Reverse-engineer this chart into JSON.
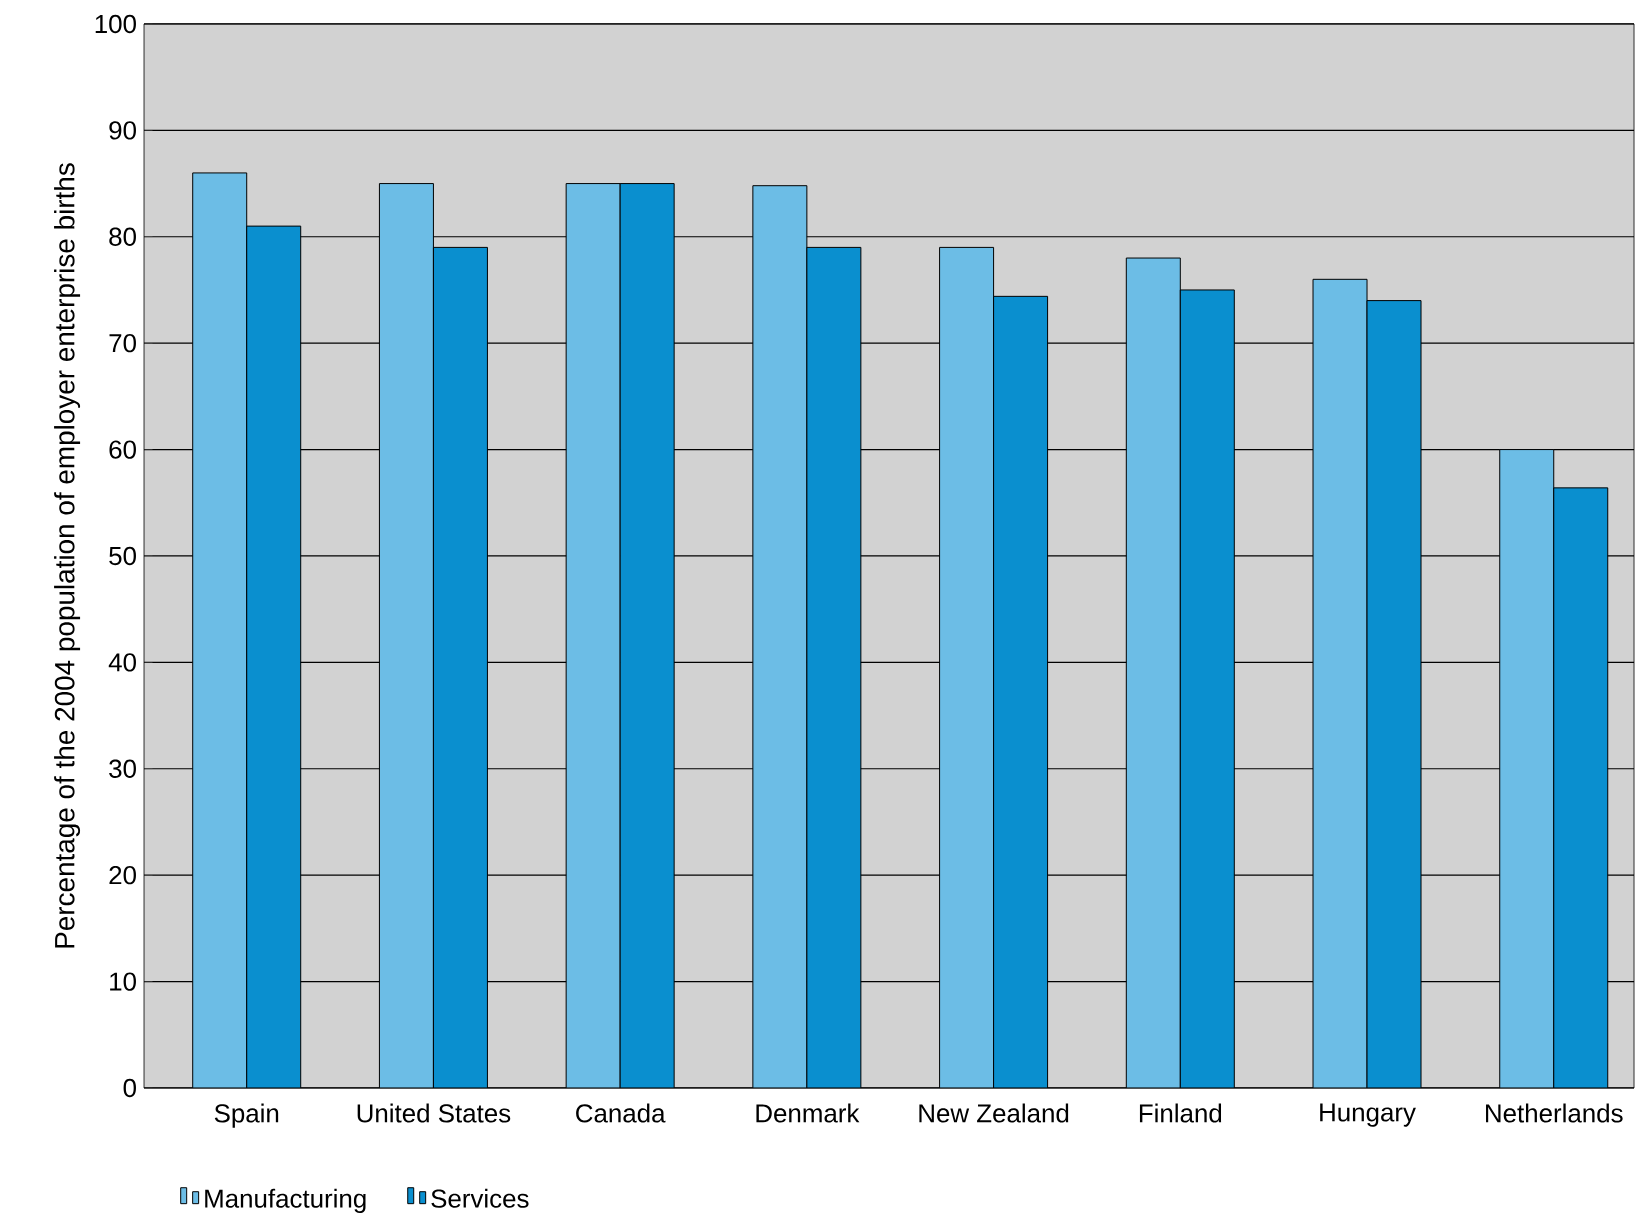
{
  "chart_data": {
    "type": "bar",
    "ylabel": "Percentage of the 2004 population of employer enterprise births",
    "categories": [
      "Spain",
      "United States",
      "Canada",
      "Denmark",
      "New Zealand",
      "Finland",
      "Hungary",
      "Netherlands"
    ],
    "series": [
      {
        "name": "Manufacturing",
        "color": "#6cbde6",
        "values": [
          86,
          85,
          85,
          84.8,
          79,
          78,
          76,
          60
        ]
      },
      {
        "name": "Services",
        "color": "#0a8fcf",
        "values": [
          81,
          79,
          85,
          79,
          74.4,
          75,
          74,
          56.4
        ]
      }
    ],
    "ylim": [
      0,
      100
    ],
    "yticks": [
      0,
      10,
      20,
      30,
      40,
      50,
      60,
      70,
      80,
      90,
      100
    ],
    "grid": "y",
    "legend": "bottom left"
  }
}
